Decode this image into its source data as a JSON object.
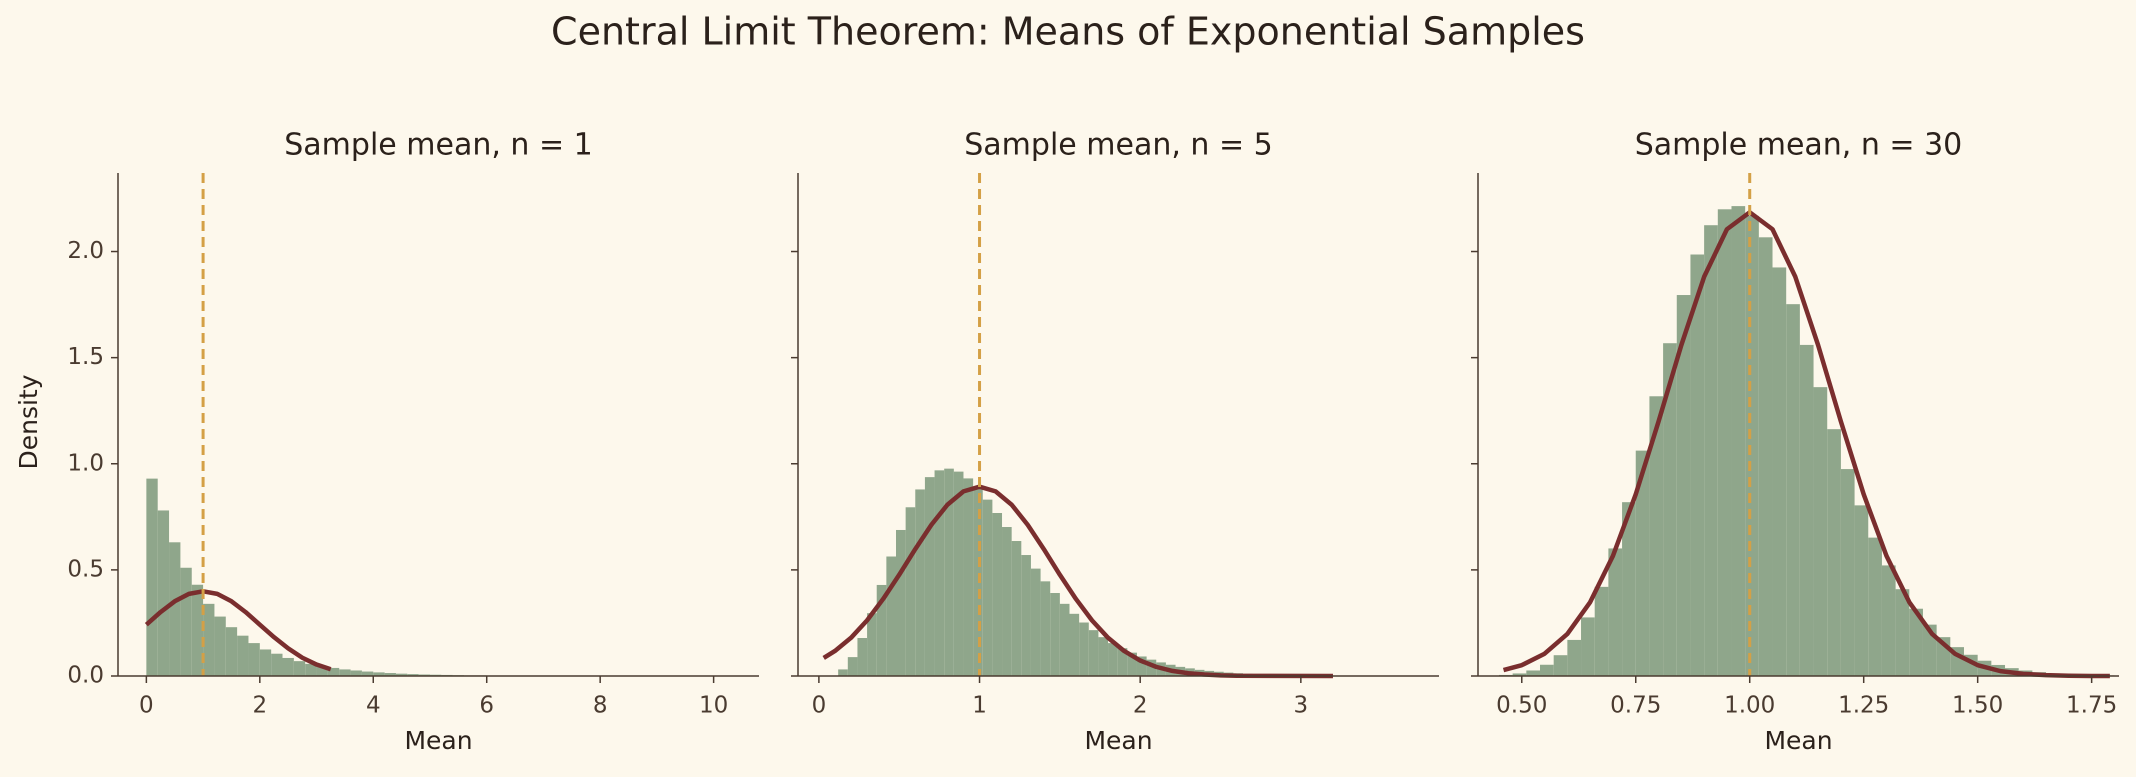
{
  "title": "Central Limit Theorem: Means of Exponential Samples",
  "chart_data": [
    {
      "type": "histogram",
      "title": "Sample mean, n = 1",
      "xlabel": "Mean",
      "ylabel": "Density",
      "bins": [
        0,
        0.2,
        0.4,
        0.6,
        0.8,
        1,
        1.2,
        1.4,
        1.6,
        1.8,
        2,
        2.2,
        2.4,
        2.6,
        2.8,
        3,
        3.2,
        3.4,
        3.6,
        3.8,
        4,
        4.2,
        4.4,
        4.6,
        4.8,
        5,
        5.2,
        5.4,
        5.6,
        5.8,
        6,
        6.2,
        6.4,
        6.6,
        6.8,
        7,
        7.2,
        7.4,
        7.6,
        7.8,
        8,
        8.2,
        8.4,
        8.6,
        8.8,
        9,
        9.2,
        9.4,
        9.6,
        9.8,
        10
      ],
      "values": [
        0.93,
        0.78,
        0.63,
        0.51,
        0.43,
        0.34,
        0.28,
        0.23,
        0.19,
        0.155,
        0.125,
        0.105,
        0.085,
        0.07,
        0.057,
        0.046,
        0.038,
        0.031,
        0.026,
        0.021,
        0.017,
        0.014,
        0.011,
        0.009,
        0.007,
        0.006,
        0.005,
        0.004,
        0.003,
        0.003,
        0.002,
        0.002,
        0.0015,
        0.001,
        0.001,
        0.001,
        0.0008,
        0.0006,
        0.0005,
        0.0004,
        0.0003,
        0.0003,
        0.0002,
        0.0002,
        0.0002,
        0.0001,
        0.0001,
        0.0001,
        0.0001,
        0.0001
      ],
      "color": "#8fa68b",
      "curve": {
        "color": "#7a2e2e",
        "x": [
          0,
          0.25,
          0.5,
          0.75,
          1,
          1.25,
          1.5,
          1.75,
          2,
          2.25,
          2.5,
          2.75,
          3,
          3.25
        ],
        "y": [
          0.242,
          0.301,
          0.352,
          0.387,
          0.399,
          0.387,
          0.352,
          0.301,
          0.242,
          0.183,
          0.13,
          0.086,
          0.054,
          0.032
        ]
      },
      "vline": 1,
      "vline_color": "#d4a046",
      "xlim": [
        -0.5,
        10.8
      ],
      "xticks": [
        0,
        2,
        4,
        6,
        8,
        10
      ],
      "ylim": [
        0,
        2.37
      ],
      "yticks": [
        {
          "value": 0,
          "label": "0.0"
        },
        {
          "value": 0.5,
          "label": "0.5"
        },
        {
          "value": 1,
          "label": "1.0"
        },
        {
          "value": 1.5,
          "label": "1.5"
        },
        {
          "value": 2,
          "label": "2.0"
        }
      ]
    },
    {
      "type": "histogram",
      "title": "Sample mean, n = 5",
      "xlabel": "Mean",
      "bins": [
        0.12,
        0.18,
        0.24,
        0.3,
        0.36,
        0.42,
        0.48,
        0.54,
        0.6,
        0.66,
        0.72,
        0.78,
        0.84,
        0.9,
        0.96,
        1.02,
        1.08,
        1.14,
        1.2,
        1.26,
        1.32,
        1.38,
        1.44,
        1.5,
        1.56,
        1.62,
        1.68,
        1.74,
        1.8,
        1.86,
        1.92,
        1.98,
        2.04,
        2.1,
        2.16,
        2.22,
        2.28,
        2.34,
        2.4,
        2.46,
        2.52,
        2.58,
        2.64,
        2.7,
        2.76,
        2.82,
        2.88,
        2.94,
        3.0,
        3.06,
        3.12,
        3.18,
        3.24
      ],
      "values": [
        0.031,
        0.089,
        0.179,
        0.296,
        0.429,
        0.563,
        0.688,
        0.795,
        0.879,
        0.937,
        0.969,
        0.977,
        0.963,
        0.931,
        0.886,
        0.831,
        0.768,
        0.702,
        0.636,
        0.57,
        0.506,
        0.446,
        0.391,
        0.34,
        0.293,
        0.252,
        0.216,
        0.183,
        0.155,
        0.131,
        0.11,
        0.092,
        0.077,
        0.064,
        0.053,
        0.043,
        0.036,
        0.029,
        0.024,
        0.02,
        0.016,
        0.013,
        0.01,
        0.008,
        0.007,
        0.005,
        0.004,
        0.003,
        0.003,
        0.002,
        0.002,
        0.001
      ],
      "color": "#8fa68b",
      "curve": {
        "color": "#7a2e2e",
        "x": [
          0.03,
          0.1,
          0.2,
          0.3,
          0.4,
          0.5,
          0.6,
          0.7,
          0.8,
          0.9,
          1.0,
          1.1,
          1.2,
          1.3,
          1.4,
          1.5,
          1.6,
          1.7,
          1.8,
          1.9,
          2.0,
          2.1,
          2.2,
          2.3,
          2.4,
          2.5,
          2.6,
          3.2
        ],
        "y": [
          0.085,
          0.118,
          0.18,
          0.262,
          0.363,
          0.477,
          0.598,
          0.712,
          0.807,
          0.87,
          0.892,
          0.87,
          0.807,
          0.712,
          0.598,
          0.477,
          0.363,
          0.262,
          0.18,
          0.118,
          0.073,
          0.043,
          0.024,
          0.013,
          0.007,
          0.003,
          0.001,
          0
        ]
      },
      "vline": 1,
      "vline_color": "#d4a046",
      "xlim": [
        -0.13,
        3.86
      ],
      "xticks": [
        0,
        1,
        2,
        3
      ],
      "ylim": [
        0,
        2.37
      ]
    },
    {
      "type": "histogram",
      "title": "Sample mean, n = 30",
      "xlabel": "Mean",
      "bins": [
        0.45,
        0.48,
        0.51,
        0.54,
        0.57,
        0.6,
        0.63,
        0.66,
        0.69,
        0.72,
        0.75,
        0.78,
        0.81,
        0.84,
        0.87,
        0.9,
        0.93,
        0.96,
        0.99,
        1.02,
        1.05,
        1.08,
        1.11,
        1.14,
        1.17,
        1.2,
        1.23,
        1.26,
        1.29,
        1.32,
        1.35,
        1.38,
        1.41,
        1.44,
        1.47,
        1.5,
        1.53,
        1.56,
        1.59,
        1.62,
        1.65,
        1.68,
        1.71,
        1.74,
        1.77,
        1.8
      ],
      "values": [
        0.005,
        0.012,
        0.026,
        0.053,
        0.098,
        0.17,
        0.276,
        0.42,
        0.601,
        0.819,
        1.062,
        1.318,
        1.568,
        1.795,
        1.986,
        2.124,
        2.199,
        2.214,
        2.168,
        2.067,
        1.925,
        1.752,
        1.56,
        1.361,
        1.163,
        0.975,
        0.804,
        0.652,
        0.521,
        0.409,
        0.317,
        0.242,
        0.183,
        0.136,
        0.1,
        0.072,
        0.052,
        0.037,
        0.026,
        0.018,
        0.012,
        0.009,
        0.006,
        0.004,
        0.003
      ],
      "color": "#8fa68b",
      "curve": {
        "color": "#7a2e2e",
        "x": [
          0.46,
          0.5,
          0.55,
          0.6,
          0.65,
          0.7,
          0.75,
          0.8,
          0.85,
          0.9,
          0.95,
          1.0,
          1.05,
          1.1,
          1.15,
          1.2,
          1.25,
          1.3,
          1.35,
          1.4,
          1.45,
          1.5,
          1.55,
          1.6,
          1.65,
          1.7,
          1.75,
          1.79
        ],
        "y": [
          0.028,
          0.051,
          0.105,
          0.198,
          0.348,
          0.566,
          0.856,
          1.199,
          1.559,
          1.881,
          2.105,
          2.185,
          2.105,
          1.881,
          1.559,
          1.199,
          0.856,
          0.566,
          0.348,
          0.198,
          0.105,
          0.051,
          0.023,
          0.01,
          0.004,
          0.001,
          0,
          0
        ]
      },
      "vline": 1,
      "vline_color": "#d4a046",
      "xlim": [
        0.404,
        1.81
      ],
      "xticks": [
        {
          "value": 0.5,
          "label": "0.50"
        },
        0.75,
        {
          "value": 1,
          "label": "1.00"
        },
        1.25,
        {
          "value": 1.5,
          "label": "1.50"
        },
        1.75
      ],
      "ylim": [
        0,
        2.37
      ]
    }
  ]
}
